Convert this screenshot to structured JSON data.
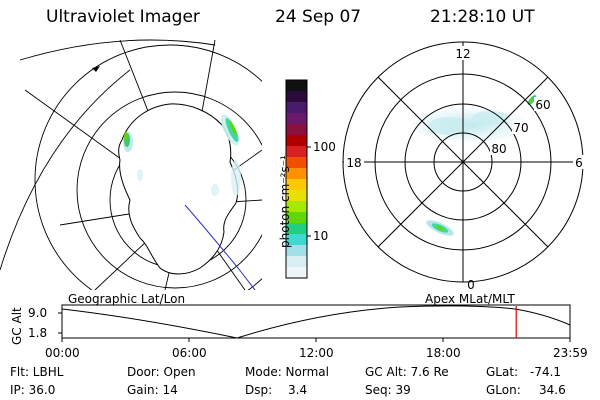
{
  "header": {
    "title": "Ultraviolet Imager",
    "date": "24 Sep 07",
    "time": "21:28:10 UT"
  },
  "colorbar": {
    "unit_label": "photon cm⁻²s⁻¹",
    "ticks": [
      "100",
      "10"
    ],
    "colors": [
      "#101010",
      "#2a0a3a",
      "#4a1a6a",
      "#6a1a6a",
      "#8a1040",
      "#b00000",
      "#d82020",
      "#f05000",
      "#ff9000",
      "#ffc800",
      "#e8e000",
      "#a8e800",
      "#60d800",
      "#20d080",
      "#40d8d0",
      "#a0e0e8",
      "#d8eef2",
      "#eef6f8"
    ]
  },
  "polar_plot": {
    "mlt_labels": {
      "top": "12",
      "bottom": "0",
      "left": "18",
      "right": "6"
    },
    "lat_labels": [
      "60",
      "70",
      "80"
    ]
  },
  "timeline": {
    "left_label": "Geographic Lat/Lon",
    "right_label": "Apex MLat/MLT",
    "y_axis_label": "GC Alt",
    "y_ticks": [
      "9.0",
      "1.8"
    ],
    "x_ticks": [
      "00:00",
      "06:00",
      "12:00",
      "18:00",
      "23:59"
    ],
    "current_time_fraction": 0.894,
    "marker_color": "#e00000"
  },
  "info": {
    "row1": {
      "flt": "Flt: LBHL",
      "door": "Door: Open",
      "mode": "Mode: Normal",
      "gc_alt": "GC Alt: 7.6 Re",
      "glat_label": "GLat:",
      "glat_value": "-74.1"
    },
    "row2": {
      "ip": "IP: 36.0",
      "gain": "Gain: 14",
      "dsp_label": "Dsp:",
      "dsp_value": "3.4",
      "seq": "Seq: 39",
      "glon_label": "GLon:",
      "glon_value": "34.6"
    }
  }
}
